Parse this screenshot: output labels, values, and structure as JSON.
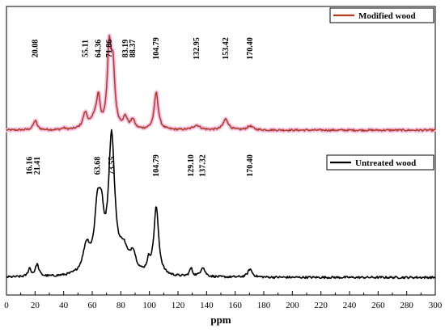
{
  "chart_data": {
    "type": "line",
    "xlabel": "ppm",
    "ylabel": "",
    "xlim": [
      0,
      300
    ],
    "xticks": [
      0,
      20,
      40,
      60,
      80,
      100,
      120,
      140,
      160,
      180,
      200,
      220,
      240,
      260,
      280,
      300
    ],
    "yticks_shown": false,
    "grid": false,
    "legend": "top-right, one legend box per panel",
    "series": [
      {
        "name": "Modified wood",
        "panel": "top",
        "color": "#b33a1e",
        "shade_color": "#f2bfe6",
        "baseline": 0.02,
        "noise": 0.012,
        "peaks": [
          {
            "ppm": 20.08,
            "height": 0.12,
            "width": 1.6
          },
          {
            "ppm": 40.0,
            "height": 0.02,
            "width": 1.5
          },
          {
            "ppm": 55.11,
            "height": 0.2,
            "width": 2.0
          },
          {
            "ppm": 62.0,
            "height": 0.16,
            "width": 2.5
          },
          {
            "ppm": 64.36,
            "height": 0.34,
            "width": 1.3
          },
          {
            "ppm": 71.86,
            "height": 1.0,
            "width": 1.6
          },
          {
            "ppm": 74.5,
            "height": 0.72,
            "width": 1.6
          },
          {
            "ppm": 83.19,
            "height": 0.14,
            "width": 1.8
          },
          {
            "ppm": 88.37,
            "height": 0.12,
            "width": 1.5
          },
          {
            "ppm": 104.79,
            "height": 0.48,
            "width": 1.7
          },
          {
            "ppm": 132.95,
            "height": 0.06,
            "width": 3.0
          },
          {
            "ppm": 153.42,
            "height": 0.14,
            "width": 2.2
          },
          {
            "ppm": 170.4,
            "height": 0.05,
            "width": 2.5
          }
        ],
        "peak_labels": [
          "20.08",
          "55.11",
          "64.36",
          "71.86",
          "83.19",
          "88.37",
          "104.79",
          "132.95",
          "153.42",
          "170.40"
        ]
      },
      {
        "name": "Untreated wood",
        "panel": "bottom",
        "color": "#000000",
        "baseline": 0.01,
        "noise": 0.008,
        "peaks": [
          {
            "ppm": 16.16,
            "height": 0.06,
            "width": 1.2
          },
          {
            "ppm": 21.41,
            "height": 0.09,
            "width": 1.5
          },
          {
            "ppm": 56.0,
            "height": 0.2,
            "width": 3.0
          },
          {
            "ppm": 63.68,
            "height": 0.45,
            "width": 2.5
          },
          {
            "ppm": 66.5,
            "height": 0.3,
            "width": 2.0
          },
          {
            "ppm": 73.55,
            "height": 1.0,
            "width": 2.6
          },
          {
            "ppm": 82.0,
            "height": 0.16,
            "width": 3.5
          },
          {
            "ppm": 88.5,
            "height": 0.14,
            "width": 2.5
          },
          {
            "ppm": 99.5,
            "height": 0.08,
            "width": 1.5
          },
          {
            "ppm": 104.79,
            "height": 0.5,
            "width": 2.0
          },
          {
            "ppm": 129.1,
            "height": 0.06,
            "width": 1.2
          },
          {
            "ppm": 137.32,
            "height": 0.07,
            "width": 1.8
          },
          {
            "ppm": 170.4,
            "height": 0.06,
            "width": 1.8
          }
        ],
        "peak_labels": [
          "16.16",
          "21.41",
          "63.68",
          "73.55",
          "104.79",
          "129.10",
          "137.32",
          "170.40"
        ]
      }
    ]
  }
}
